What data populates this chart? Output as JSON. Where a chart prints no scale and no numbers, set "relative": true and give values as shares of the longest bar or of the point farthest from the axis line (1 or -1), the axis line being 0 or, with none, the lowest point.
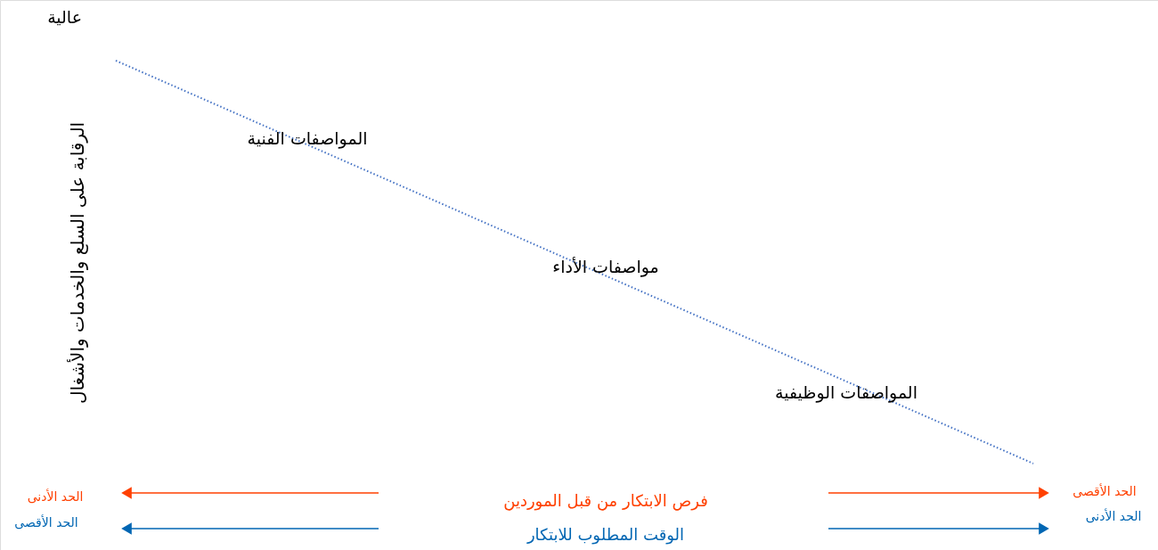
{
  "chart_data": {
    "type": "line",
    "relative": true,
    "ylabel": "الرقابة على السلع والخدمات والأشغال",
    "categories": [
      null,
      null
    ],
    "series": [
      {
        "color": "#4472c4",
        "values": [
          1,
          0
        ]
      }
    ],
    "line_style": "dotted",
    "annotations": [
      "عالية",
      "المواصفات الفنية",
      "مواصفات الأداء",
      "المواصفات الوظيفية",
      "فرص الابتكار من قبل الموردين",
      "الوقت المطلوب للابتكار",
      "الحد الأدنى",
      "الحد الأقصى",
      "الحد الأقصى",
      "الحد الأدنى"
    ]
  }
}
